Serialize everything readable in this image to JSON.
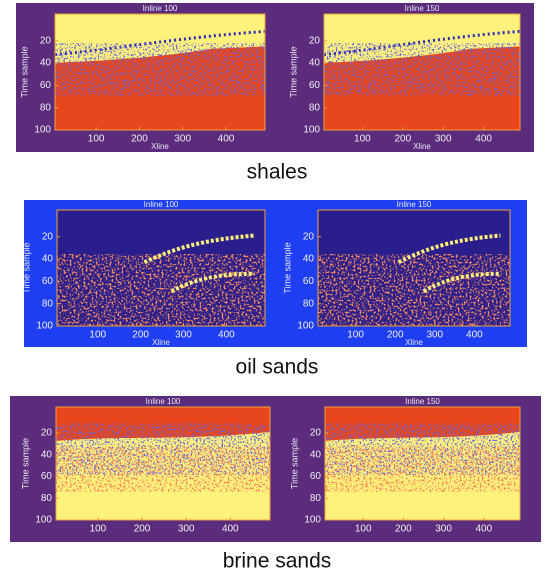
{
  "panels": [
    {
      "caption": "shales",
      "plots": [
        {
          "title": "Inline 100",
          "ylabel": "Time sample",
          "xlabel": "Xline",
          "yticks": [
            20,
            40,
            60,
            80,
            100
          ],
          "xticks": [
            100,
            200,
            300,
            400
          ]
        },
        {
          "title": "Inline 150",
          "ylabel": "Time sample",
          "xlabel": "Xline",
          "yticks": [
            20,
            40,
            60,
            80,
            100
          ],
          "xticks": [
            100,
            200,
            300,
            400
          ]
        }
      ]
    },
    {
      "caption": "oil sands",
      "plots": [
        {
          "title": "Inline 100",
          "ylabel": "Time sample",
          "xlabel": "Xline",
          "yticks": [
            20,
            40,
            60,
            80,
            100
          ],
          "xticks": [
            100,
            200,
            300,
            400
          ]
        },
        {
          "title": "Inline 150",
          "ylabel": "Time sample",
          "xlabel": "Xline",
          "yticks": [
            20,
            40,
            60,
            80,
            100
          ],
          "xticks": [
            100,
            200,
            300,
            400
          ]
        }
      ]
    },
    {
      "caption": "brine sands",
      "plots": [
        {
          "title": "Inline 100",
          "ylabel": "Time sample",
          "yticks": [
            20,
            40,
            60,
            80,
            100
          ],
          "xticks": [
            100,
            200,
            300,
            400
          ]
        },
        {
          "title": "Inline 150",
          "ylabel": "Time sample",
          "yticks": [
            20,
            40,
            60,
            80,
            100
          ],
          "xticks": [
            100,
            200,
            300,
            400
          ]
        }
      ]
    }
  ]
}
